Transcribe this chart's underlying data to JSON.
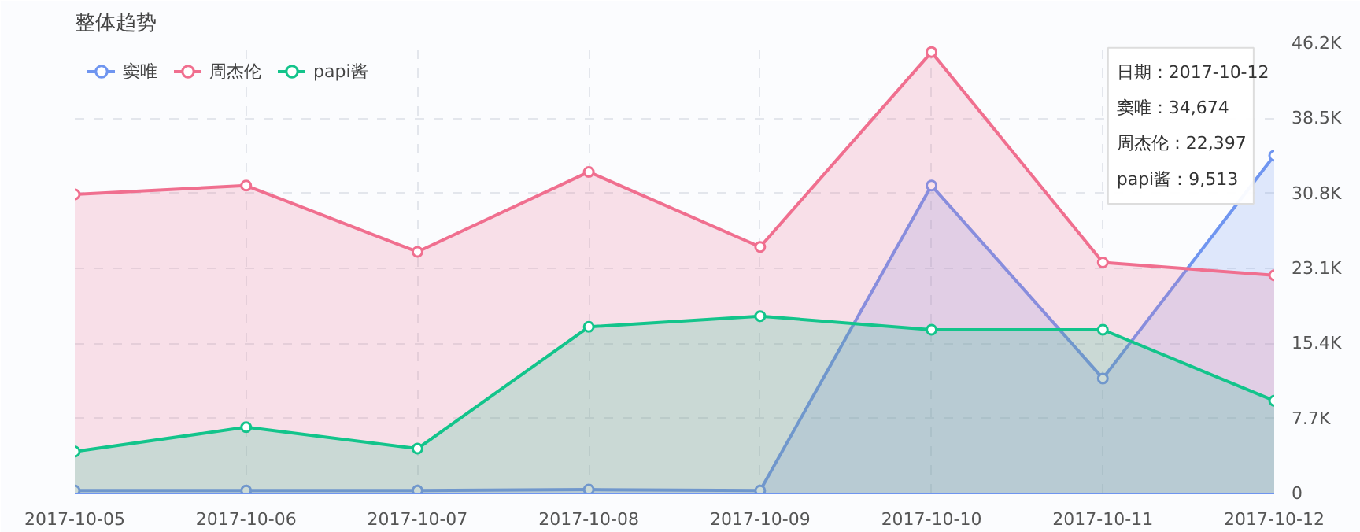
{
  "chart_data": {
    "type": "area",
    "title": "整体趋势",
    "categories": [
      "2017-10-05",
      "2017-10-06",
      "2017-10-07",
      "2017-10-08",
      "2017-10-09",
      "2017-10-10",
      "2017-10-11",
      "2017-10-12"
    ],
    "series": [
      {
        "name": "窦唯",
        "color": "#6f95f0",
        "values": [
          300,
          300,
          300,
          400,
          300,
          31600,
          11800,
          34674
        ]
      },
      {
        "name": "周杰伦",
        "color": "#f06f8f",
        "values": [
          30700,
          31600,
          24800,
          33000,
          25300,
          45300,
          23700,
          22397
        ]
      },
      {
        "name": "papi酱",
        "color": "#13c48b",
        "values": [
          4300,
          6800,
          4600,
          17100,
          18200,
          16800,
          16800,
          9513
        ]
      }
    ],
    "ylim": [
      0,
      46200
    ],
    "yticks": [
      0,
      {
        "value": 7700,
        "label": "7.7K"
      },
      {
        "value": 15400,
        "label": "15.4K"
      },
      {
        "value": 23100,
        "label": "23.1K"
      },
      {
        "value": 30800,
        "label": "30.8K"
      },
      {
        "value": 38500,
        "label": "38.5K"
      },
      {
        "value": 46200,
        "label": "46.2K"
      }
    ],
    "grid": true,
    "legend": "top left",
    "marker": "circle",
    "annotations": [
      "日期：2017-10-12",
      "窦唯：34,674",
      "周杰伦：22,397",
      "papi酱：9,513"
    ]
  }
}
